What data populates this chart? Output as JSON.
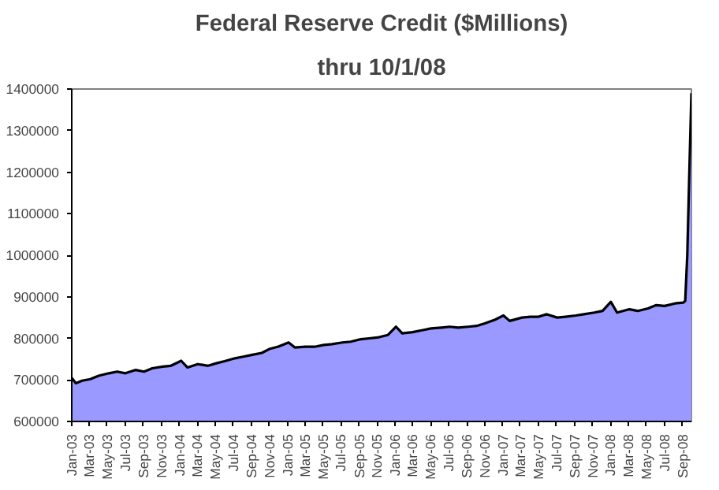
{
  "chart_data": {
    "type": "area",
    "title": "Federal Reserve Credit ($Millions)",
    "subtitle": "thru 10/1/08",
    "x": [
      "2003-01-01",
      "2003-01-15",
      "2003-02-05",
      "2003-03-05",
      "2003-04-02",
      "2003-05-07",
      "2003-06-04",
      "2003-07-02",
      "2003-08-06",
      "2003-09-03",
      "2003-10-01",
      "2003-11-05",
      "2003-12-03",
      "2004-01-07",
      "2004-01-28",
      "2004-03-03",
      "2004-04-07",
      "2004-05-05",
      "2004-06-02",
      "2004-07-07",
      "2004-08-04",
      "2004-09-01",
      "2004-10-06",
      "2004-11-03",
      "2004-12-01",
      "2005-01-05",
      "2005-01-26",
      "2005-03-02",
      "2005-04-06",
      "2005-05-04",
      "2005-06-01",
      "2005-07-06",
      "2005-08-03",
      "2005-09-07",
      "2005-10-05",
      "2005-11-02",
      "2005-12-07",
      "2006-01-04",
      "2006-01-25",
      "2006-03-01",
      "2006-04-05",
      "2006-05-03",
      "2006-06-07",
      "2006-07-05",
      "2006-08-02",
      "2006-09-06",
      "2006-10-04",
      "2006-11-01",
      "2006-12-06",
      "2007-01-03",
      "2007-01-24",
      "2007-03-07",
      "2007-04-04",
      "2007-05-02",
      "2007-05-30",
      "2007-07-04",
      "2007-08-01",
      "2007-09-05",
      "2007-10-03",
      "2007-11-07",
      "2007-12-05",
      "2008-01-02",
      "2008-01-23",
      "2008-03-05",
      "2008-04-02",
      "2008-05-07",
      "2008-06-04",
      "2008-07-02",
      "2008-08-06",
      "2008-09-03",
      "2008-09-10",
      "2008-09-17",
      "2008-09-24",
      "2008-10-01"
    ],
    "values": [
      705000,
      692000,
      698000,
      702000,
      710000,
      716000,
      720000,
      716000,
      724000,
      720000,
      728000,
      732000,
      734000,
      746000,
      730000,
      738000,
      734000,
      740000,
      745000,
      752000,
      756000,
      760000,
      765000,
      775000,
      780000,
      790000,
      778000,
      780000,
      780000,
      784000,
      786000,
      790000,
      792000,
      798000,
      800000,
      802000,
      808000,
      828000,
      812000,
      815000,
      820000,
      824000,
      826000,
      828000,
      826000,
      828000,
      830000,
      836000,
      845000,
      855000,
      842000,
      850000,
      852000,
      852000,
      858000,
      850000,
      852000,
      855000,
      858000,
      862000,
      866000,
      888000,
      862000,
      870000,
      866000,
      872000,
      880000,
      878000,
      884000,
      886000,
      890000,
      1000000,
      1200000,
      1390000
    ],
    "color": "#9999ff",
    "ylim": [
      600000,
      1400000
    ],
    "yticks": [
      600000,
      700000,
      800000,
      900000,
      1000000,
      1100000,
      1200000,
      1300000,
      1400000
    ],
    "xlim": [
      "2003-01-01",
      "2008-10-01"
    ],
    "xticks": [
      {
        "value": "2003-01-01",
        "label": "Jan-03"
      },
      {
        "value": "2003-03-01",
        "label": "Mar-03"
      },
      {
        "value": "2003-05-01",
        "label": "May-03"
      },
      {
        "value": "2003-07-01",
        "label": "Jul-03"
      },
      {
        "value": "2003-09-01",
        "label": "Sep-03"
      },
      {
        "value": "2003-11-01",
        "label": "Nov-03"
      },
      {
        "value": "2004-01-01",
        "label": "Jan-04"
      },
      {
        "value": "2004-03-01",
        "label": "Mar-04"
      },
      {
        "value": "2004-05-01",
        "label": "May-04"
      },
      {
        "value": "2004-07-01",
        "label": "Jul-04"
      },
      {
        "value": "2004-09-01",
        "label": "Sep-04"
      },
      {
        "value": "2004-11-01",
        "label": "Nov-04"
      },
      {
        "value": "2005-01-01",
        "label": "Jan-05"
      },
      {
        "value": "2005-03-01",
        "label": "Mar-05"
      },
      {
        "value": "2005-05-01",
        "label": "May-05"
      },
      {
        "value": "2005-07-01",
        "label": "Jul-05"
      },
      {
        "value": "2005-09-01",
        "label": "Sep-05"
      },
      {
        "value": "2005-11-01",
        "label": "Nov-05"
      },
      {
        "value": "2006-01-01",
        "label": "Jan-06"
      },
      {
        "value": "2006-03-01",
        "label": "Mar-06"
      },
      {
        "value": "2006-05-01",
        "label": "May-06"
      },
      {
        "value": "2006-07-01",
        "label": "Jul-06"
      },
      {
        "value": "2006-09-01",
        "label": "Sep-06"
      },
      {
        "value": "2006-11-01",
        "label": "Nov-06"
      },
      {
        "value": "2007-01-01",
        "label": "Jan-07"
      },
      {
        "value": "2007-03-01",
        "label": "Mar-07"
      },
      {
        "value": "2007-05-01",
        "label": "May-07"
      },
      {
        "value": "2007-07-01",
        "label": "Jul-07"
      },
      {
        "value": "2007-09-01",
        "label": "Sep-07"
      },
      {
        "value": "2007-11-01",
        "label": "Nov-07"
      },
      {
        "value": "2008-01-01",
        "label": "Jan-08"
      },
      {
        "value": "2008-03-01",
        "label": "Mar-08"
      },
      {
        "value": "2008-05-01",
        "label": "May-08"
      },
      {
        "value": "2008-07-01",
        "label": "Jul-08"
      },
      {
        "value": "2008-09-01",
        "label": "Sep-08"
      }
    ],
    "grid": false
  }
}
